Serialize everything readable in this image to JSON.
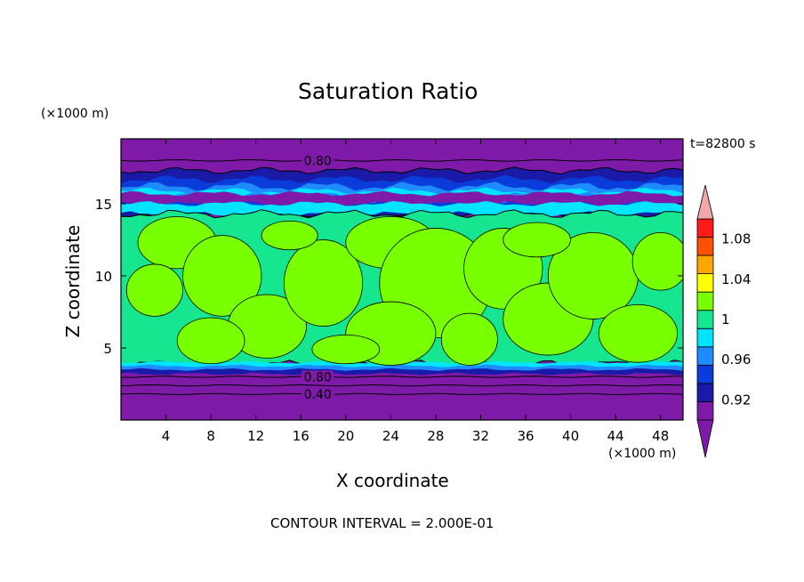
{
  "chart_data": {
    "type": "heatmap",
    "title": "Saturation Ratio",
    "xlabel": "X coordinate",
    "ylabel": "Z coordinate",
    "x_unit": "(×1000 m)",
    "y_unit": "(×1000 m)",
    "time_label": "t=82800 s",
    "footer": "CONTOUR INTERVAL = 2.000E-01",
    "xlim": [
      0,
      50
    ],
    "ylim": [
      0,
      19.5
    ],
    "x_ticks": [
      "4",
      "8",
      "12",
      "16",
      "20",
      "24",
      "28",
      "32",
      "36",
      "40",
      "44",
      "48"
    ],
    "y_ticks": [
      "5",
      "10",
      "15"
    ],
    "x_tick_values": [
      4,
      8,
      12,
      16,
      20,
      24,
      28,
      32,
      36,
      40,
      44,
      48
    ],
    "y_tick_values": [
      5,
      10,
      15
    ],
    "contour_labels": [
      {
        "text": "0.80",
        "x": 17.5,
        "z": 18.0
      },
      {
        "text": "0.80",
        "x": 17.5,
        "z": 3.0
      },
      {
        "text": "0.40",
        "x": 17.5,
        "z": 1.8
      }
    ],
    "colorbar": {
      "levels": [
        0.9,
        0.92,
        0.94,
        0.96,
        0.98,
        1.0,
        1.02,
        1.04,
        1.06,
        1.08,
        1.1
      ],
      "labels": [
        "1.08",
        "1.04",
        "1",
        "0.96",
        "0.92"
      ],
      "colors": [
        "#7f1aa8",
        "#1a1aa8",
        "#0a3cd9",
        "#1e8cff",
        "#00e5ff",
        "#16e690",
        "#78ff00",
        "#ffff00",
        "#ffa500",
        "#ff5000",
        "#ff1a1a"
      ],
      "over_color": "#f0a8a8",
      "under_color": "#7f1aa8"
    },
    "layers": [
      {
        "z_range": [
          0,
          3.4
        ],
        "value": "< 0.90"
      },
      {
        "z_range": [
          3.4,
          4.2
        ],
        "value": "0.92 - 0.98"
      },
      {
        "z_range": [
          4.2,
          14.2
        ],
        "value": "0.98 - 1.02"
      },
      {
        "z_range": [
          14.2,
          17.2
        ],
        "value": "0.92 - 0.98"
      },
      {
        "z_range": [
          17.2,
          19.5
        ],
        "value": "< 0.90"
      }
    ]
  }
}
